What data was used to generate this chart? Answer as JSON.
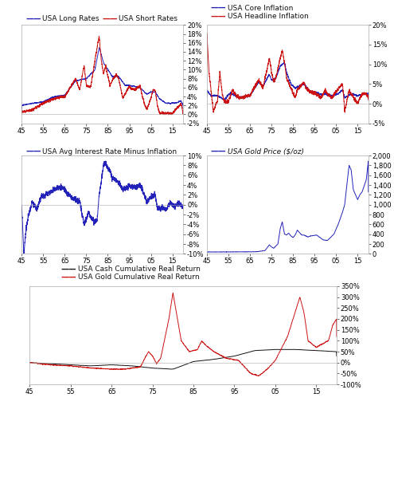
{
  "blue": "#2222bb",
  "red": "#cc1111",
  "black": "#111111",
  "gray_spine": "#aaaaaa",
  "bg": "#ffffff",
  "tick_fontsize": 6.0,
  "legend_fontsize": 6.5,
  "line_width": 0.7,
  "x_tick_vals": [
    1945,
    1955,
    1965,
    1975,
    1985,
    1995,
    2005,
    2015
  ],
  "x_tick_labs": [
    "45",
    "55",
    "65",
    "75",
    "85",
    "95",
    "05",
    "15"
  ]
}
